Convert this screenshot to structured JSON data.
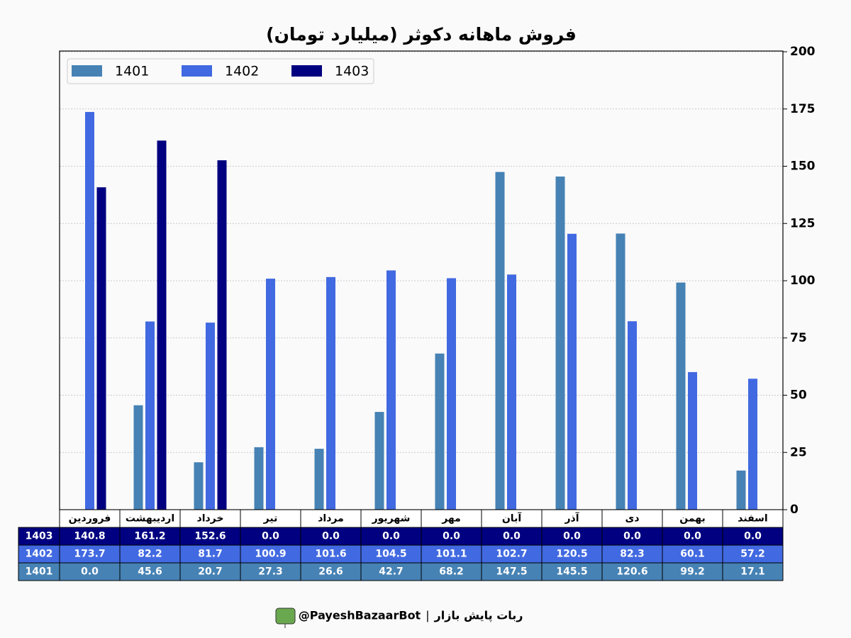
{
  "chart_data": {
    "type": "bar",
    "title": "فروش ماهانه دکوثر (میلیارد تومان)",
    "categories": [
      "فروردین",
      "اردیبهشت",
      "خرداد",
      "تیر",
      "مرداد",
      "شهریور",
      "مهر",
      "آبان",
      "آذر",
      "دی",
      "بهمن",
      "اسفند"
    ],
    "series": [
      {
        "name": "1401",
        "color": "#4682b4",
        "values": [
          0,
          45.6,
          20.7,
          27.3,
          26.6,
          42.7,
          68.2,
          147.5,
          145.5,
          120.6,
          99.2,
          17.1
        ],
        "value_labels": [
          "0.0",
          "45.6",
          "20.7",
          "27.3",
          "26.6",
          "42.7",
          "68.2",
          "147.5",
          "145.5",
          "120.6",
          "99.2",
          "17.1"
        ]
      },
      {
        "name": "1402",
        "color": "#4169e1",
        "values": [
          173.7,
          82.2,
          81.7,
          100.9,
          101.6,
          104.5,
          101.1,
          102.7,
          120.5,
          82.3,
          60.1,
          57.2
        ],
        "value_labels": [
          "173.7",
          "82.2",
          "81.7",
          "100.9",
          "101.6",
          "104.5",
          "101.1",
          "102.7",
          "120.5",
          "82.3",
          "60.1",
          "57.2"
        ]
      },
      {
        "name": "1403",
        "color": "#000080",
        "values": [
          140.8,
          161.2,
          152.6,
          0,
          0,
          0,
          0,
          0,
          0,
          0,
          0,
          0
        ],
        "value_labels": [
          "140.8",
          "161.2",
          "152.6",
          "0.0",
          "0.0",
          "0.0",
          "0.0",
          "0.0",
          "0.0",
          "0.0",
          "0.0",
          "0.0"
        ]
      }
    ],
    "ylim": [
      0,
      200
    ],
    "yticks": [
      0,
      25,
      50,
      75,
      100,
      125,
      150,
      175,
      200
    ],
    "y_axis_side": "right",
    "grid": true,
    "legend": "upper left"
  },
  "footer": {
    "text": "ربات پایش بازار",
    "separator": "|",
    "handle": "@PayeshBazaarBot"
  }
}
